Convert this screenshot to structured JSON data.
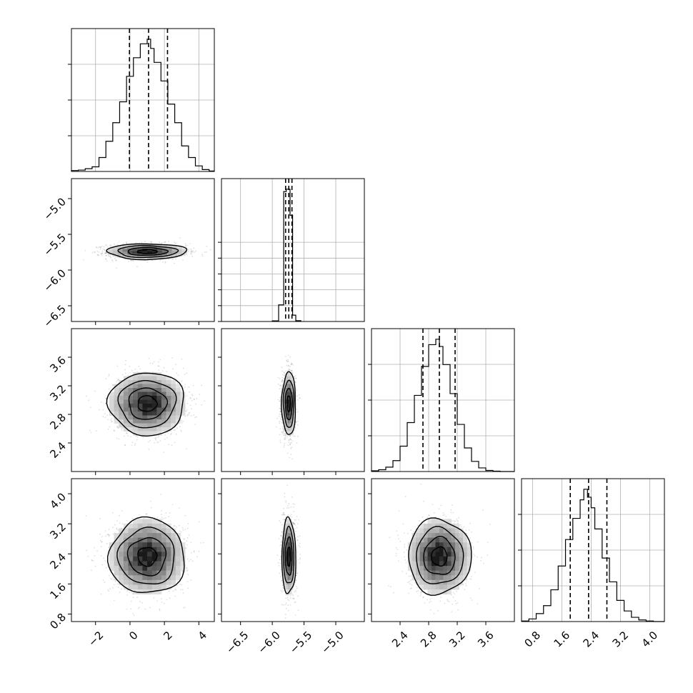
{
  "chart_data": {
    "type": "corner",
    "grid": true,
    "parameters": [
      {
        "id": "p1",
        "xlim": [
          -3.4,
          4.9
        ],
        "ylim": [
          -5.5,
          6.0
        ],
        "xticks": [
          -2,
          0,
          2,
          4
        ],
        "xtick_labels": [
          "−2",
          "0",
          "2",
          "4"
        ],
        "yticks": [
          -5.5,
          -4.5,
          -3.5,
          -2.5
        ],
        "yticks_show_labels": false,
        "quantiles": [
          -0.03,
          1.08,
          2.18
        ],
        "hist": {
          "edges": [
            -3.4,
            -3.0,
            -2.6,
            -2.2,
            -1.8,
            -1.4,
            -1.0,
            -0.6,
            -0.2,
            0.2,
            0.6,
            1.0,
            1.2,
            1.4,
            1.8,
            2.2,
            2.6,
            3.0,
            3.4,
            3.8,
            4.2,
            4.6,
            4.9
          ],
          "heights": [
            0.02,
            0.03,
            0.06,
            0.1,
            0.3,
            0.65,
            1.05,
            1.5,
            2.05,
            2.45,
            2.75,
            2.85,
            2.65,
            2.35,
            1.95,
            1.45,
            1.05,
            0.55,
            0.3,
            0.12,
            0.04,
            0.01
          ]
        }
      },
      {
        "id": "p2",
        "xlim": [
          -6.8,
          -4.55
        ],
        "ylim": [
          -6.72,
          -4.72
        ],
        "xticks": [
          -6.5,
          -6.0,
          -5.5,
          -5.0
        ],
        "xtick_labels": [
          "−6.5",
          "−6.0",
          "−5.5",
          "−5.0"
        ],
        "yticks": [
          -6.5,
          -6.0,
          -5.5,
          -5.0
        ],
        "ytick_labels": [
          "−6.5",
          "−6.0",
          "−5.5",
          "−5.0"
        ],
        "yticks_hist": [
          0,
          1,
          2,
          3,
          4,
          5
        ],
        "quantiles": [
          -5.79,
          -5.74,
          -5.69
        ],
        "hist": {
          "edges": [
            -6.0,
            -5.9,
            -5.82,
            -5.78,
            -5.72,
            -5.68,
            -5.63,
            -5.55
          ],
          "heights": [
            0.04,
            1.05,
            8.2,
            8.35,
            6.7,
            0.4,
            0.05
          ]
        }
      },
      {
        "id": "p3",
        "xlim": [
          2.0,
          4.0
        ],
        "ylim": [
          2.0,
          4.0
        ],
        "xticks": [
          2.4,
          2.8,
          3.2,
          3.6
        ],
        "xtick_labels": [
          "2.4",
          "2.8",
          "3.2",
          "3.6"
        ],
        "yticks": [
          2.4,
          2.8,
          3.2,
          3.6
        ],
        "ytick_labels": [
          "2.4",
          "2.8",
          "3.2",
          "3.6"
        ],
        "quantiles": [
          2.72,
          2.95,
          3.17
        ],
        "hist": {
          "edges": [
            2.0,
            2.1,
            2.2,
            2.3,
            2.4,
            2.5,
            2.6,
            2.7,
            2.8,
            2.9,
            2.95,
            3.0,
            3.1,
            3.2,
            3.3,
            3.4,
            3.5,
            3.6,
            3.7,
            3.8,
            4.0
          ],
          "heights": [
            0.02,
            0.05,
            0.12,
            0.3,
            0.7,
            1.35,
            2.1,
            2.9,
            3.5,
            3.65,
            3.45,
            2.95,
            2.15,
            1.3,
            0.65,
            0.28,
            0.1,
            0.03,
            0.01,
            0.0
          ]
        }
      },
      {
        "id": "p4",
        "xlim": [
          0.5,
          4.4
        ],
        "ylim": [
          0.6,
          4.4
        ],
        "xticks": [
          0.8,
          1.6,
          2.4,
          3.2,
          4.0
        ],
        "xtick_labels": [
          "0.8",
          "1.6",
          "2.4",
          "3.2",
          "4.0"
        ],
        "yticks": [
          0.8,
          1.6,
          2.4,
          3.2,
          4.0
        ],
        "ytick_labels": [
          "0.8",
          "1.6",
          "2.4",
          "3.2",
          "4.0"
        ],
        "quantiles": [
          1.83,
          2.33,
          2.83
        ],
        "hist": {
          "edges": [
            0.5,
            0.7,
            0.9,
            1.1,
            1.3,
            1.5,
            1.7,
            1.9,
            2.1,
            2.2,
            2.3,
            2.4,
            2.5,
            2.7,
            2.9,
            3.1,
            3.3,
            3.5,
            3.7,
            3.9,
            4.1,
            4.4
          ],
          "heights": [
            0.01,
            0.05,
            0.15,
            0.3,
            0.6,
            1.05,
            1.55,
            1.95,
            2.3,
            2.5,
            2.35,
            2.15,
            1.75,
            1.2,
            0.75,
            0.4,
            0.2,
            0.08,
            0.03,
            0.01,
            0.0
          ]
        }
      }
    ],
    "pairs": [
      {
        "x": "p1",
        "y": "p2",
        "center": [
          1.0,
          -5.74
        ],
        "sigma": [
          1.15,
          0.055
        ]
      },
      {
        "x": "p1",
        "y": "p3",
        "center": [
          1.0,
          2.95
        ],
        "sigma": [
          1.1,
          0.22
        ]
      },
      {
        "x": "p2",
        "y": "p3",
        "center": [
          -5.74,
          2.95
        ],
        "sigma": [
          0.055,
          0.22
        ]
      },
      {
        "x": "p1",
        "y": "p4",
        "center": [
          1.0,
          2.33
        ],
        "sigma": [
          1.1,
          0.5
        ]
      },
      {
        "x": "p2",
        "y": "p4",
        "center": [
          -5.74,
          2.33
        ],
        "sigma": [
          0.055,
          0.5
        ]
      },
      {
        "x": "p3",
        "y": "p4",
        "center": [
          2.95,
          2.33
        ],
        "sigma": [
          0.22,
          0.5
        ]
      }
    ],
    "contour_sigma_levels": [
      0.5,
      1.0,
      1.5,
      2.0
    ]
  }
}
